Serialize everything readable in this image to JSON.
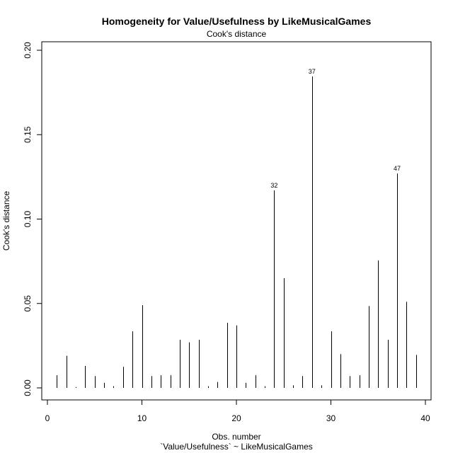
{
  "chart_data": {
    "type": "bar",
    "title": "Homogeneity for Value/Usefulness by LikeMusicalGames",
    "subtitle": "Cook's distance",
    "xlabel": "Obs. number",
    "xlabel2": "`Value/Usefulness` ~ LikeMusicalGames",
    "ylabel": "Cook's distance",
    "xlim": [
      0,
      40
    ],
    "ylim": [
      0,
      0.2
    ],
    "xticks": [
      0,
      10,
      20,
      30,
      40
    ],
    "xtick_labels": [
      "0",
      "10",
      "20",
      "30",
      "40"
    ],
    "yticks": [
      0,
      0.05,
      0.1,
      0.15,
      0.2
    ],
    "ytick_labels": [
      "0.00",
      "0.05",
      "0.10",
      "0.15",
      "0.20"
    ],
    "x": [
      1,
      2,
      3,
      4,
      5,
      6,
      7,
      8,
      9,
      10,
      11,
      12,
      13,
      14,
      15,
      16,
      17,
      18,
      19,
      20,
      21,
      22,
      23,
      24,
      25,
      26,
      27,
      28,
      29,
      30,
      31,
      32,
      33,
      34,
      35,
      36,
      37,
      38,
      39
    ],
    "values": [
      0.0075,
      0.019,
      0.0005,
      0.013,
      0.007,
      0.003,
      0.001,
      0.0125,
      0.0335,
      0.049,
      0.007,
      0.0075,
      0.0075,
      0.0285,
      0.027,
      0.0285,
      0.001,
      0.0035,
      0.0385,
      0.037,
      0.003,
      0.0075,
      0.001,
      0.117,
      0.065,
      0.0015,
      0.007,
      0.1845,
      0.0015,
      0.0335,
      0.02,
      0.007,
      0.0075,
      0.0485,
      0.0755,
      0.0285,
      0.127,
      0.051,
      0.0195
    ],
    "annotations": [
      {
        "x": 24,
        "y": 0.117,
        "text": "32"
      },
      {
        "x": 28,
        "y": 0.1845,
        "text": "37"
      },
      {
        "x": 37,
        "y": 0.127,
        "text": "47"
      }
    ],
    "grid": false
  }
}
